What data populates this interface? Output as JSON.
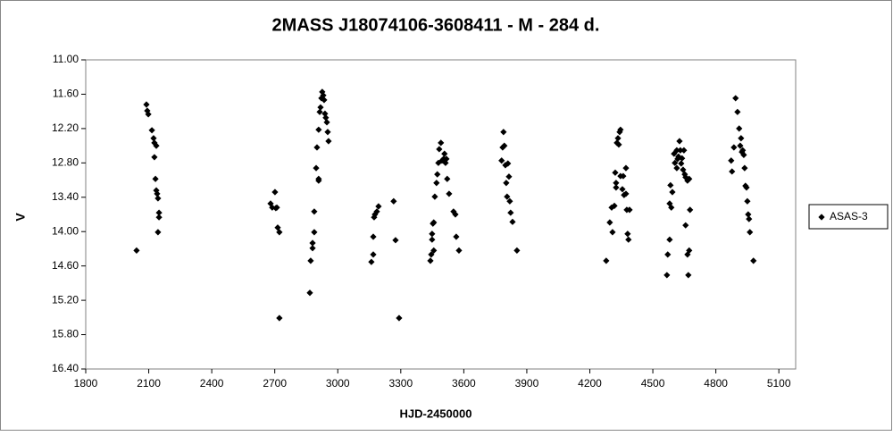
{
  "chart_data": {
    "type": "scatter",
    "title": "2MASS J18074106-3608411  - M - 284 d.",
    "x_label": "HJD-2450000",
    "y_label": "V",
    "xlim": [
      1800,
      5180
    ],
    "xticks": [
      1800,
      2100,
      2400,
      2700,
      3000,
      3300,
      3600,
      3900,
      4200,
      4500,
      4800,
      5100
    ],
    "ylim": [
      11,
      16.4
    ],
    "y_inverted": true,
    "yticks": [
      {
        "value": 11,
        "label": "11.00"
      },
      {
        "value": 11.6,
        "label": "11.60"
      },
      {
        "value": 12.2,
        "label": "12.20"
      },
      {
        "value": 12.8,
        "label": "12.80"
      },
      {
        "value": 13.4,
        "label": "13.40"
      },
      {
        "value": 14,
        "label": "14.00"
      },
      {
        "value": 14.6,
        "label": "14.60"
      },
      {
        "value": 15.2,
        "label": "15.20"
      },
      {
        "value": 15.8,
        "label": "15.80"
      },
      {
        "value": 16.4,
        "label": "16.40"
      }
    ],
    "legend": "right",
    "series": [
      {
        "name": "ASAS-3",
        "color": "#000000",
        "x": [
          2042,
          2089,
          2093,
          2098,
          2115,
          2123,
          2127,
          2136,
          2127,
          2132,
          2136,
          2140,
          2144,
          2149,
          2149,
          2144,
          2680,
          2688,
          2701,
          2705,
          2710,
          2714,
          2722,
          2722,
          2867,
          2871,
          2880,
          2880,
          2888,
          2888,
          2897,
          2901,
          2909,
          2909,
          2909,
          2914,
          2918,
          2922,
          2926,
          2931,
          2935,
          2939,
          2943,
          2948,
          2952,
          2956,
          3160,
          3169,
          3169,
          3173,
          3177,
          3186,
          3194,
          3266,
          3275,
          3292,
          3441,
          3445,
          3449,
          3449,
          3453,
          3457,
          3457,
          3462,
          3470,
          3474,
          3479,
          3483,
          3491,
          3496,
          3504,
          3508,
          3513,
          3517,
          3521,
          3530,
          3551,
          3560,
          3564,
          3577,
          3780,
          3785,
          3789,
          3793,
          3798,
          3802,
          3806,
          3810,
          3815,
          3819,
          3823,
          3832,
          3853,
          4278,
          4295,
          4304,
          4308,
          4317,
          4321,
          4325,
          4325,
          4329,
          4334,
          4338,
          4342,
          4346,
          4346,
          4355,
          4359,
          4363,
          4372,
          4376,
          4380,
          4384,
          4389,
          4372,
          4567,
          4571,
          4580,
          4580,
          4588,
          4584,
          4593,
          4601,
          4605,
          4614,
          4614,
          4618,
          4622,
          4627,
          4631,
          4635,
          4639,
          4644,
          4648,
          4652,
          4656,
          4665,
          4656,
          4665,
          4669,
          4673,
          4677,
          4673,
          4873,
          4877,
          4886,
          4894,
          4903,
          4911,
          4916,
          4920,
          4924,
          4928,
          4933,
          4937,
          4941,
          4946,
          4950,
          4954,
          4958,
          4962,
          4979
        ],
        "values": [
          14.33,
          11.78,
          11.89,
          11.95,
          12.23,
          12.37,
          12.45,
          12.5,
          12.7,
          13.08,
          13.28,
          13.34,
          13.42,
          13.67,
          13.75,
          14.01,
          13.51,
          13.58,
          13.31,
          13.59,
          13.58,
          13.93,
          14.01,
          15.51,
          15.07,
          14.51,
          14.29,
          14.2,
          14.01,
          13.65,
          12.89,
          12.53,
          13.11,
          13.08,
          12.22,
          11.91,
          11.83,
          11.67,
          11.56,
          11.62,
          11.7,
          11.94,
          12.01,
          12.09,
          12.26,
          12.42,
          14.53,
          14.4,
          14.09,
          13.75,
          13.7,
          13.65,
          13.56,
          13.47,
          14.15,
          15.51,
          14.51,
          14.4,
          14.14,
          14.04,
          13.86,
          13.84,
          14.33,
          13.39,
          13.15,
          13.0,
          12.8,
          12.56,
          12.45,
          12.76,
          12.73,
          12.64,
          12.8,
          12.73,
          13.08,
          13.34,
          13.65,
          13.7,
          14.09,
          14.33,
          12.76,
          12.53,
          12.26,
          12.5,
          12.84,
          13.15,
          13.39,
          12.81,
          13.04,
          13.47,
          13.67,
          13.83,
          14.33,
          14.51,
          13.84,
          13.58,
          14.01,
          13.55,
          12.97,
          13.15,
          13.23,
          12.45,
          12.37,
          12.48,
          12.26,
          12.22,
          13.03,
          13.26,
          13.03,
          13.36,
          12.89,
          13.62,
          14.04,
          14.14,
          13.62,
          13.34,
          14.76,
          14.4,
          14.14,
          13.51,
          13.58,
          13.19,
          13.31,
          12.64,
          12.8,
          12.58,
          12.89,
          12.73,
          12.69,
          12.42,
          12.58,
          12.81,
          12.72,
          12.92,
          12.58,
          13.0,
          13.05,
          13.11,
          13.89,
          14.4,
          14.76,
          14.33,
          13.62,
          13.08,
          12.76,
          12.95,
          12.53,
          11.67,
          11.91,
          12.2,
          12.5,
          12.37,
          12.61,
          12.58,
          12.66,
          12.89,
          13.2,
          13.23,
          13.47,
          13.7,
          13.78,
          14.01,
          14.51
        ]
      }
    ]
  }
}
